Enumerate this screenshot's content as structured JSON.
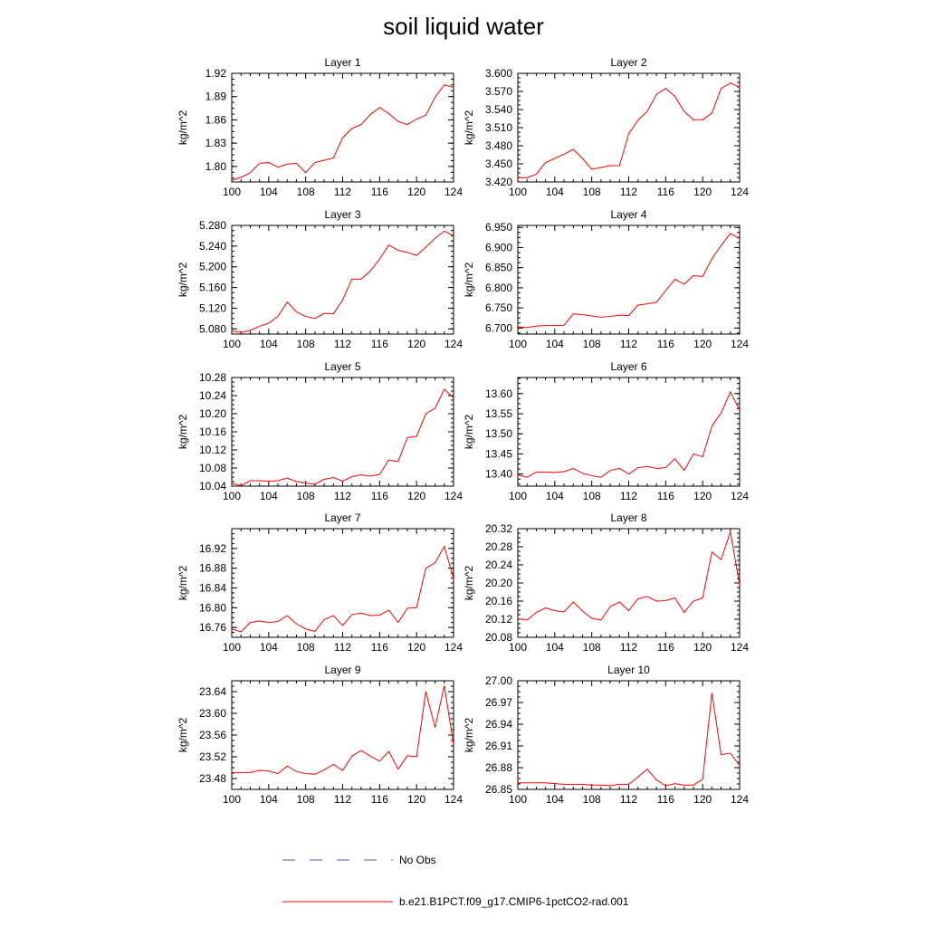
{
  "title": "soil liquid water",
  "legend": {
    "placement": "bottom",
    "entries": [
      {
        "label": "No Obs",
        "color": "#5555cc",
        "style": "dashed"
      },
      {
        "label": "b.e21.B1PCT.f09_g17.CMIP6-1pctCO2-rad.001",
        "color": "#ff0000",
        "style": "solid"
      }
    ]
  },
  "chart_data": [
    {
      "type": "line",
      "title": "Layer 1",
      "ylabel": "kg/m^2",
      "xlim": [
        100,
        124
      ],
      "xticks": [
        "100",
        "104",
        "108",
        "112",
        "116",
        "120",
        "124"
      ],
      "ylim": [
        1.78,
        1.92
      ],
      "yticks": [
        "1.80",
        "1.83",
        "1.86",
        "1.89",
        "1.92"
      ],
      "x": [
        100,
        101,
        102,
        103,
        104,
        105,
        106,
        107,
        108,
        109,
        110,
        111,
        112,
        113,
        114,
        115,
        116,
        117,
        118,
        119,
        120,
        121,
        122,
        123,
        124
      ],
      "series": [
        {
          "name": "b.e21.B1PCT.f09_g17.CMIP6-1pctCO2-rad.001",
          "color": "#ff0000",
          "values": [
            1.782,
            1.786,
            1.792,
            1.804,
            1.805,
            1.799,
            1.803,
            1.804,
            1.792,
            1.805,
            1.808,
            1.811,
            1.837,
            1.849,
            1.854,
            1.867,
            1.876,
            1.868,
            1.858,
            1.854,
            1.861,
            1.866,
            1.889,
            1.905,
            1.902
          ]
        }
      ]
    },
    {
      "type": "line",
      "title": "Layer 2",
      "ylabel": "kg/m^2",
      "xlim": [
        100,
        124
      ],
      "xticks": [
        "100",
        "104",
        "108",
        "112",
        "116",
        "120",
        "124"
      ],
      "ylim": [
        3.42,
        3.6
      ],
      "yticks": [
        "3.420",
        "3.450",
        "3.480",
        "3.510",
        "3.540",
        "3.570",
        "3.600"
      ],
      "x": [
        100,
        101,
        102,
        103,
        104,
        105,
        106,
        107,
        108,
        109,
        110,
        111,
        112,
        113,
        114,
        115,
        116,
        117,
        118,
        119,
        120,
        121,
        122,
        123,
        124
      ],
      "series": [
        {
          "name": "b.e21.B1PCT.f09_g17.CMIP6-1pctCO2-rad.001",
          "color": "#ff0000",
          "values": [
            3.427,
            3.427,
            3.433,
            3.452,
            3.459,
            3.466,
            3.474,
            3.459,
            3.441,
            3.444,
            3.447,
            3.447,
            3.5,
            3.522,
            3.537,
            3.565,
            3.575,
            3.562,
            3.537,
            3.523,
            3.523,
            3.534,
            3.575,
            3.584,
            3.577
          ]
        }
      ]
    },
    {
      "type": "line",
      "title": "Layer 3",
      "ylabel": "kg/m^2",
      "xlim": [
        100,
        124
      ],
      "xticks": [
        "100",
        "104",
        "108",
        "112",
        "116",
        "120",
        "124"
      ],
      "ylim": [
        5.07,
        5.28
      ],
      "yticks": [
        "5.080",
        "5.120",
        "5.160",
        "5.200",
        "5.240",
        "5.280"
      ],
      "x": [
        100,
        101,
        102,
        103,
        104,
        105,
        106,
        107,
        108,
        109,
        110,
        111,
        112,
        113,
        114,
        115,
        116,
        117,
        118,
        119,
        120,
        121,
        122,
        123,
        124
      ],
      "series": [
        {
          "name": "b.e21.B1PCT.f09_g17.CMIP6-1pctCO2-rad.001",
          "color": "#ff0000",
          "values": [
            5.076,
            5.073,
            5.077,
            5.085,
            5.091,
            5.104,
            5.132,
            5.113,
            5.104,
            5.1,
            5.11,
            5.109,
            5.136,
            5.176,
            5.176,
            5.192,
            5.215,
            5.242,
            5.232,
            5.228,
            5.222,
            5.238,
            5.255,
            5.269,
            5.26
          ]
        }
      ]
    },
    {
      "type": "line",
      "title": "Layer 4",
      "ylabel": "kg/m^2",
      "xlim": [
        100,
        124
      ],
      "xticks": [
        "100",
        "104",
        "108",
        "112",
        "116",
        "120",
        "124"
      ],
      "ylim": [
        6.685,
        6.955
      ],
      "yticks": [
        "6.700",
        "6.750",
        "6.800",
        "6.850",
        "6.900",
        "6.950"
      ],
      "x": [
        100,
        101,
        102,
        103,
        104,
        105,
        106,
        107,
        108,
        109,
        110,
        111,
        112,
        113,
        114,
        115,
        116,
        117,
        118,
        119,
        120,
        121,
        122,
        123,
        124
      ],
      "series": [
        {
          "name": "b.e21.B1PCT.f09_g17.CMIP6-1pctCO2-rad.001",
          "color": "#ff0000",
          "values": [
            6.703,
            6.701,
            6.705,
            6.706,
            6.706,
            6.707,
            6.735,
            6.733,
            6.73,
            6.727,
            6.729,
            6.732,
            6.731,
            6.757,
            6.76,
            6.764,
            6.793,
            6.821,
            6.809,
            6.83,
            6.828,
            6.872,
            6.905,
            6.935,
            6.922
          ]
        }
      ]
    },
    {
      "type": "line",
      "title": "Layer 5",
      "ylabel": "kg/m^2",
      "xlim": [
        100,
        124
      ],
      "xticks": [
        "100",
        "104",
        "108",
        "112",
        "116",
        "120",
        "124"
      ],
      "ylim": [
        10.04,
        10.28
      ],
      "yticks": [
        "10.04",
        "10.08",
        "10.12",
        "10.16",
        "10.20",
        "10.24",
        "10.28"
      ],
      "x": [
        100,
        101,
        102,
        103,
        104,
        105,
        106,
        107,
        108,
        109,
        110,
        111,
        112,
        113,
        114,
        115,
        116,
        117,
        118,
        119,
        120,
        121,
        122,
        123,
        124
      ],
      "series": [
        {
          "name": "b.e21.B1PCT.f09_g17.CMIP6-1pctCO2-rad.001",
          "color": "#ff0000",
          "values": [
            10.046,
            10.041,
            10.052,
            10.052,
            10.051,
            10.052,
            10.058,
            10.05,
            10.047,
            10.044,
            10.055,
            10.059,
            10.051,
            10.061,
            10.065,
            10.062,
            10.066,
            10.098,
            10.094,
            10.147,
            10.15,
            10.2,
            10.212,
            10.254,
            10.235
          ]
        }
      ]
    },
    {
      "type": "line",
      "title": "Layer 6",
      "ylabel": "kg/m^2",
      "xlim": [
        100,
        124
      ],
      "xticks": [
        "100",
        "104",
        "108",
        "112",
        "116",
        "120",
        "124"
      ],
      "ylim": [
        13.37,
        13.64
      ],
      "yticks": [
        "13.40",
        "13.45",
        "13.50",
        "13.55",
        "13.60"
      ],
      "x": [
        100,
        101,
        102,
        103,
        104,
        105,
        106,
        107,
        108,
        109,
        110,
        111,
        112,
        113,
        114,
        115,
        116,
        117,
        118,
        119,
        120,
        121,
        122,
        123,
        124
      ],
      "series": [
        {
          "name": "b.e21.B1PCT.f09_g17.CMIP6-1pctCO2-rad.001",
          "color": "#ff0000",
          "values": [
            13.398,
            13.392,
            13.405,
            13.405,
            13.404,
            13.406,
            13.414,
            13.402,
            13.396,
            13.392,
            13.409,
            13.414,
            13.4,
            13.416,
            13.419,
            13.414,
            13.416,
            13.438,
            13.409,
            13.45,
            13.443,
            13.519,
            13.552,
            13.604,
            13.559
          ]
        }
      ]
    },
    {
      "type": "line",
      "title": "Layer 7",
      "ylabel": "kg/m^2",
      "xlim": [
        100,
        124
      ],
      "xticks": [
        "100",
        "104",
        "108",
        "112",
        "116",
        "120",
        "124"
      ],
      "ylim": [
        16.74,
        16.96
      ],
      "yticks": [
        "16.76",
        "16.80",
        "16.84",
        "16.88",
        "16.92"
      ],
      "x": [
        100,
        101,
        102,
        103,
        104,
        105,
        106,
        107,
        108,
        109,
        110,
        111,
        112,
        113,
        114,
        115,
        116,
        117,
        118,
        119,
        120,
        121,
        122,
        123,
        124
      ],
      "series": [
        {
          "name": "b.e21.B1PCT.f09_g17.CMIP6-1pctCO2-rad.001",
          "color": "#ff0000",
          "values": [
            16.757,
            16.751,
            16.77,
            16.773,
            16.77,
            16.772,
            16.784,
            16.767,
            16.757,
            16.752,
            16.776,
            16.784,
            16.764,
            16.786,
            16.789,
            16.784,
            16.785,
            16.795,
            16.77,
            16.799,
            16.8,
            16.88,
            16.891,
            16.924,
            16.859
          ]
        }
      ]
    },
    {
      "type": "line",
      "title": "Layer 8",
      "ylabel": "kg/m^2",
      "xlim": [
        100,
        124
      ],
      "xticks": [
        "100",
        "104",
        "108",
        "112",
        "116",
        "120",
        "124"
      ],
      "ylim": [
        20.08,
        20.32
      ],
      "yticks": [
        "20.08",
        "20.12",
        "20.16",
        "20.20",
        "20.24",
        "20.28",
        "20.32"
      ],
      "x": [
        100,
        101,
        102,
        103,
        104,
        105,
        106,
        107,
        108,
        109,
        110,
        111,
        112,
        113,
        114,
        115,
        116,
        117,
        118,
        119,
        120,
        121,
        122,
        123,
        124
      ],
      "series": [
        {
          "name": "b.e21.B1PCT.f09_g17.CMIP6-1pctCO2-rad.001",
          "color": "#ff0000",
          "values": [
            20.121,
            20.118,
            20.135,
            20.145,
            20.139,
            20.136,
            20.158,
            20.138,
            20.122,
            20.118,
            20.148,
            20.158,
            20.139,
            20.165,
            20.17,
            20.16,
            20.161,
            20.167,
            20.135,
            20.16,
            20.167,
            20.268,
            20.252,
            20.313,
            20.195
          ]
        }
      ]
    },
    {
      "type": "line",
      "title": "Layer 9",
      "ylabel": "kg/m^2",
      "xlim": [
        100,
        124
      ],
      "xticks": [
        "100",
        "104",
        "108",
        "112",
        "116",
        "120",
        "124"
      ],
      "ylim": [
        23.46,
        23.66
      ],
      "yticks": [
        "23.48",
        "23.52",
        "23.56",
        "23.60",
        "23.64"
      ],
      "x": [
        100,
        101,
        102,
        103,
        104,
        105,
        106,
        107,
        108,
        109,
        110,
        111,
        112,
        113,
        114,
        115,
        116,
        117,
        118,
        119,
        120,
        121,
        122,
        123,
        124
      ],
      "series": [
        {
          "name": "b.e21.B1PCT.f09_g17.CMIP6-1pctCO2-rad.001",
          "color": "#ff0000",
          "values": [
            23.491,
            23.491,
            23.491,
            23.495,
            23.494,
            23.489,
            23.503,
            23.493,
            23.489,
            23.488,
            23.496,
            23.506,
            23.495,
            23.521,
            23.532,
            23.521,
            23.512,
            23.53,
            23.497,
            23.522,
            23.52,
            23.64,
            23.574,
            23.651,
            23.542
          ]
        }
      ]
    },
    {
      "type": "line",
      "title": "Layer 10",
      "ylabel": "kg/m^2",
      "xlim": [
        100,
        124
      ],
      "xticks": [
        "100",
        "104",
        "108",
        "112",
        "116",
        "120",
        "124"
      ],
      "ylim": [
        26.85,
        27.0
      ],
      "yticks": [
        "26.85",
        "26.88",
        "26.91",
        "26.94",
        "26.97",
        "27.00"
      ],
      "x": [
        100,
        101,
        102,
        103,
        104,
        105,
        106,
        107,
        108,
        109,
        110,
        111,
        112,
        113,
        114,
        115,
        116,
        117,
        118,
        119,
        120,
        121,
        122,
        123,
        124
      ],
      "series": [
        {
          "name": "b.e21.B1PCT.f09_g17.CMIP6-1pctCO2-rad.001",
          "color": "#ff0000",
          "values": [
            26.859,
            26.859,
            26.859,
            26.859,
            26.858,
            26.857,
            26.857,
            26.857,
            26.856,
            26.856,
            26.855,
            26.857,
            26.857,
            26.867,
            26.878,
            26.863,
            26.855,
            26.858,
            26.856,
            26.856,
            26.864,
            26.983,
            26.898,
            26.9,
            26.883
          ]
        }
      ]
    }
  ]
}
